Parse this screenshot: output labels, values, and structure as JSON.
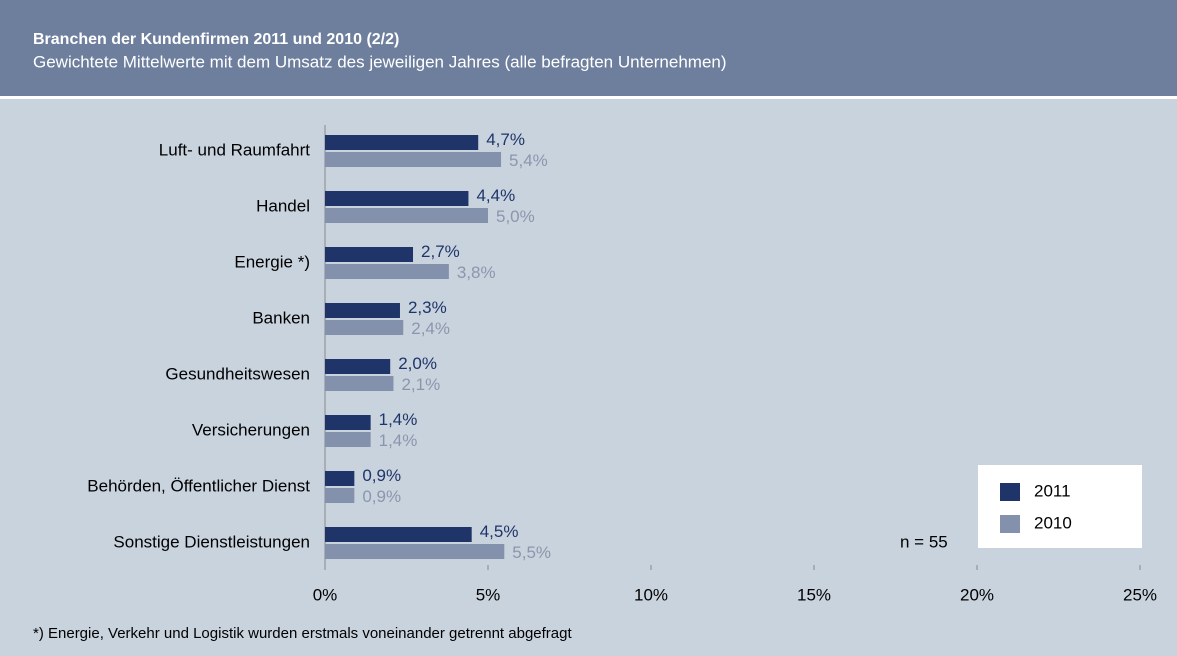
{
  "chart_data": {
    "type": "hbar",
    "title": "Branchen der Kundenfirmen 2011 und 2010 (2/2)",
    "subtitle": "Gewichtete Mittelwerte mit dem Umsatz des jeweiligen Jahres (alle befragten Unternehmen)",
    "footnote": "*) Energie, Verkehr und Logistik wurden erstmals voneinander getrennt abgefragt",
    "annotation": "n = 55",
    "categories": [
      "Luft- und Raumfahrt",
      "Handel",
      "Energie *)",
      "Banken",
      "Gesundheitswesen",
      "Versicherungen",
      "Behörden, Öffentlicher Dienst",
      "Sonstige Dienstleistungen"
    ],
    "series": [
      {
        "name": "2011",
        "color": "#1f3469",
        "label_color": "#1f3469",
        "values": [
          4.7,
          4.4,
          2.7,
          2.3,
          2.0,
          1.4,
          0.9,
          4.5
        ],
        "value_labels": [
          "4,7%",
          "4,4%",
          "2,7%",
          "2,3%",
          "2,0%",
          "1,4%",
          "0,9%",
          "4,5%"
        ]
      },
      {
        "name": "2010",
        "color": "#8491ac",
        "label_color": "#8b96ad",
        "values": [
          5.4,
          5.0,
          3.8,
          2.4,
          2.1,
          1.4,
          0.9,
          5.5
        ],
        "value_labels": [
          "5,4%",
          "5,0%",
          "3,8%",
          "2,4%",
          "2,1%",
          "1,4%",
          "0,9%",
          "5,5%"
        ]
      }
    ],
    "xlim": [
      0,
      25
    ],
    "xticks": [
      {
        "value": 0,
        "label": "0%"
      },
      {
        "value": 5,
        "label": "5%"
      },
      {
        "value": 10,
        "label": "10%"
      },
      {
        "value": 15,
        "label": "15%"
      },
      {
        "value": 20,
        "label": "20%"
      },
      {
        "value": 25,
        "label": "25%"
      }
    ],
    "legend": "lower right"
  }
}
